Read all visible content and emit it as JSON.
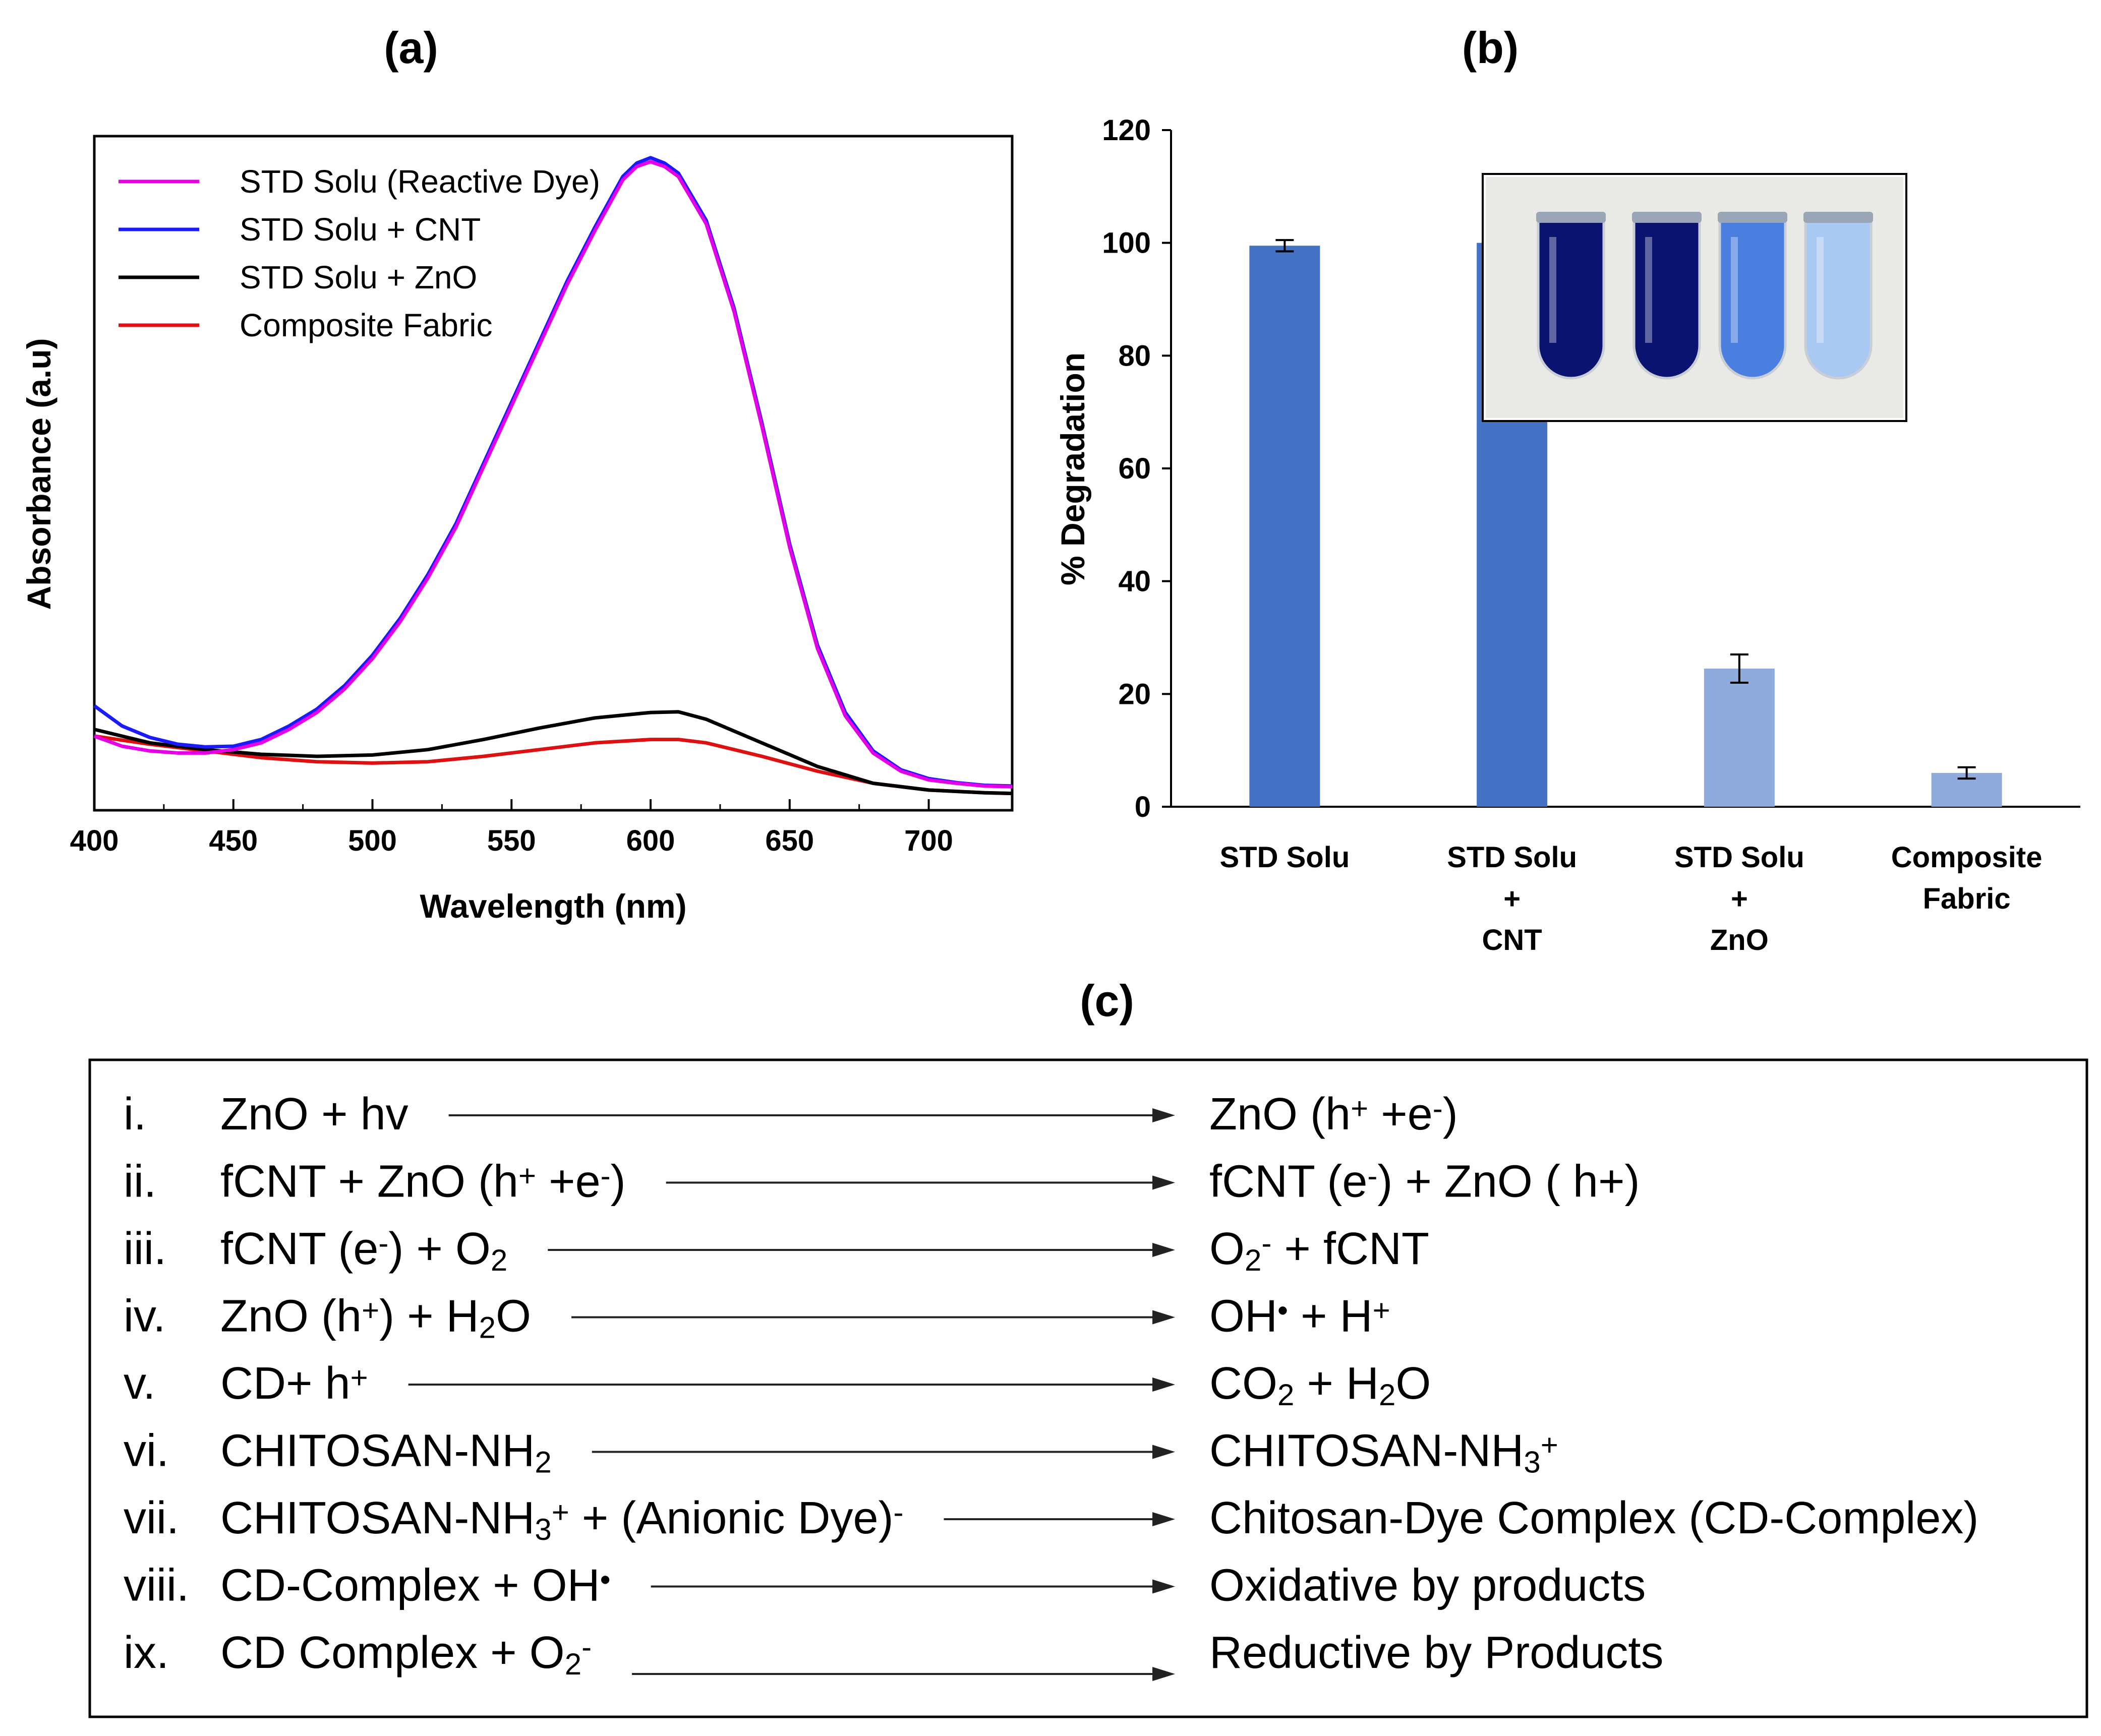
{
  "chart_data": [
    {
      "panel": "(a)",
      "type": "line",
      "title": "",
      "xlabel": "Wavelength (nm)",
      "ylabel": "Absorbance (a.u)",
      "xlim": [
        400,
        730
      ],
      "ylim": [
        0,
        1.0
      ],
      "xticks": [
        400,
        450,
        500,
        550,
        600,
        650,
        700
      ],
      "grid": false,
      "legend_position": "top-left",
      "series": [
        {
          "name": "STD Solu (Reactive Dye)",
          "color": "#e600e6",
          "x": [
            400,
            410,
            420,
            430,
            440,
            450,
            460,
            470,
            480,
            490,
            500,
            510,
            520,
            530,
            540,
            550,
            560,
            570,
            580,
            590,
            595,
            600,
            605,
            610,
            620,
            630,
            640,
            650,
            660,
            670,
            680,
            690,
            700,
            710,
            720,
            730
          ],
          "y": [
            0.11,
            0.095,
            0.088,
            0.085,
            0.085,
            0.09,
            0.1,
            0.12,
            0.145,
            0.18,
            0.225,
            0.28,
            0.345,
            0.42,
            0.51,
            0.6,
            0.69,
            0.78,
            0.86,
            0.935,
            0.955,
            0.962,
            0.955,
            0.94,
            0.87,
            0.74,
            0.57,
            0.39,
            0.24,
            0.14,
            0.085,
            0.058,
            0.045,
            0.04,
            0.036,
            0.035
          ]
        },
        {
          "name": "STD Solu + CNT",
          "color": "#1a1aff",
          "x": [
            400,
            410,
            420,
            430,
            440,
            450,
            460,
            470,
            480,
            490,
            500,
            510,
            520,
            530,
            540,
            550,
            560,
            570,
            580,
            590,
            595,
            600,
            605,
            610,
            620,
            630,
            640,
            650,
            660,
            670,
            680,
            690,
            700,
            710,
            720,
            730
          ],
          "y": [
            0.155,
            0.125,
            0.108,
            0.098,
            0.094,
            0.095,
            0.105,
            0.125,
            0.15,
            0.185,
            0.23,
            0.285,
            0.35,
            0.425,
            0.515,
            0.605,
            0.695,
            0.785,
            0.865,
            0.94,
            0.96,
            0.968,
            0.96,
            0.945,
            0.875,
            0.745,
            0.575,
            0.395,
            0.245,
            0.145,
            0.088,
            0.06,
            0.047,
            0.041,
            0.037,
            0.036
          ]
        },
        {
          "name": "STD Solu + ZnO",
          "color": "#000000",
          "x": [
            400,
            420,
            440,
            460,
            480,
            500,
            520,
            540,
            560,
            580,
            600,
            610,
            620,
            640,
            660,
            680,
            700,
            720,
            730
          ],
          "y": [
            0.12,
            0.1,
            0.09,
            0.083,
            0.08,
            0.082,
            0.09,
            0.105,
            0.122,
            0.137,
            0.145,
            0.146,
            0.135,
            0.1,
            0.065,
            0.04,
            0.03,
            0.026,
            0.025
          ]
        },
        {
          "name": "Composite Fabric",
          "color": "#dd1111",
          "x": [
            400,
            420,
            440,
            460,
            480,
            500,
            520,
            540,
            560,
            580,
            600,
            610,
            620,
            640,
            660,
            680,
            700,
            720,
            730
          ],
          "y": [
            0.11,
            0.098,
            0.088,
            0.078,
            0.072,
            0.07,
            0.072,
            0.08,
            0.09,
            0.1,
            0.105,
            0.105,
            0.1,
            0.08,
            0.058,
            0.04,
            0.03,
            0.026,
            0.025
          ]
        }
      ]
    },
    {
      "panel": "(b)",
      "type": "bar",
      "title": "",
      "xlabel": "",
      "ylabel": "% Degradation",
      "ylim": [
        0,
        120
      ],
      "yticks": [
        0,
        20,
        40,
        60,
        80,
        100,
        120
      ],
      "grid": false,
      "categories": [
        [
          "STD Solu"
        ],
        [
          "STD Solu",
          "+",
          "CNT"
        ],
        [
          "STD Solu",
          "+",
          "ZnO"
        ],
        [
          "Composite",
          "Fabric"
        ]
      ],
      "values": [
        99.5,
        100,
        24.5,
        6.0
      ],
      "errors": [
        1.0,
        0,
        2.5,
        1.0
      ],
      "bar_colors": [
        "#4472c4",
        "#4472c4",
        "#8faadc",
        "#8faadc"
      ],
      "inset": "photo of four test tubes with dye solutions",
      "inset_tube_colors": [
        "#0a1470",
        "#0a1470",
        "#4a7fe0",
        "#a9c8f2"
      ]
    }
  ],
  "panel_c": {
    "label": "(c)",
    "reactions": [
      {
        "num": "i.",
        "lhs": [
          [
            "ZnO + hv",
            ""
          ]
        ],
        "rhs": [
          [
            "ZnO (h",
            ""
          ],
          [
            "+",
            "sup"
          ],
          [
            " +e",
            ""
          ],
          [
            "-",
            "sup"
          ],
          [
            ")",
            ""
          ]
        ]
      },
      {
        "num": "ii.",
        "lhs": [
          [
            "fCNT + ZnO (h",
            ""
          ],
          [
            "+",
            "sup"
          ],
          [
            " +e",
            ""
          ],
          [
            "-",
            "sup"
          ],
          [
            ")",
            ""
          ]
        ],
        "rhs": [
          [
            "fCNT (e",
            ""
          ],
          [
            "-",
            "sup"
          ],
          [
            ") + ZnO ( h+)",
            ""
          ]
        ]
      },
      {
        "num": "iii.",
        "lhs": [
          [
            "fCNT (e",
            ""
          ],
          [
            "-",
            "sup"
          ],
          [
            ") +  O",
            ""
          ],
          [
            "2",
            "sub"
          ]
        ],
        "rhs": [
          [
            "O",
            ""
          ],
          [
            "2",
            "sub"
          ],
          [
            "-",
            "sup"
          ],
          [
            " + fCNT",
            ""
          ]
        ]
      },
      {
        "num": "iv.",
        "lhs": [
          [
            "ZnO (h",
            ""
          ],
          [
            "+",
            "sup"
          ],
          [
            ") + H",
            ""
          ],
          [
            "2",
            "sub"
          ],
          [
            "O",
            ""
          ]
        ],
        "rhs": [
          [
            "OH",
            ""
          ],
          [
            "•",
            "sup"
          ],
          [
            " + H",
            ""
          ],
          [
            "+",
            "sup"
          ]
        ]
      },
      {
        "num": "v.",
        "lhs": [
          [
            "CD+ h",
            ""
          ],
          [
            "+",
            "sup"
          ]
        ],
        "rhs": [
          [
            "CO",
            ""
          ],
          [
            "2",
            "sub"
          ],
          [
            " + H",
            ""
          ],
          [
            "2",
            "sub"
          ],
          [
            "O",
            ""
          ]
        ]
      },
      {
        "num": "vi.",
        "lhs": [
          [
            "CHITOSAN-NH",
            ""
          ],
          [
            "2",
            "sub"
          ]
        ],
        "rhs": [
          [
            "CHITOSAN-NH",
            ""
          ],
          [
            "3",
            "sub"
          ],
          [
            "+",
            "sup"
          ]
        ]
      },
      {
        "num": "vii.",
        "lhs": [
          [
            "CHITOSAN-NH",
            ""
          ],
          [
            "3",
            "sub"
          ],
          [
            "+",
            "sup"
          ],
          [
            " + (Anionic Dye)",
            ""
          ],
          [
            "-",
            "sup"
          ]
        ],
        "rhs": [
          [
            "Chitosan-Dye Complex (CD-Complex)",
            ""
          ]
        ]
      },
      {
        "num": "viii.",
        "lhs": [
          [
            "CD-Complex + OH",
            ""
          ],
          [
            "•",
            "sup"
          ]
        ],
        "rhs": [
          [
            "Oxidative by products",
            ""
          ]
        ]
      },
      {
        "num": "ix.",
        "lhs": [
          [
            "CD Complex + O",
            ""
          ],
          [
            "2",
            "sub"
          ],
          [
            "-",
            "sup"
          ]
        ],
        "rhs": [
          [
            "Reductive by Products",
            ""
          ]
        ]
      }
    ]
  }
}
